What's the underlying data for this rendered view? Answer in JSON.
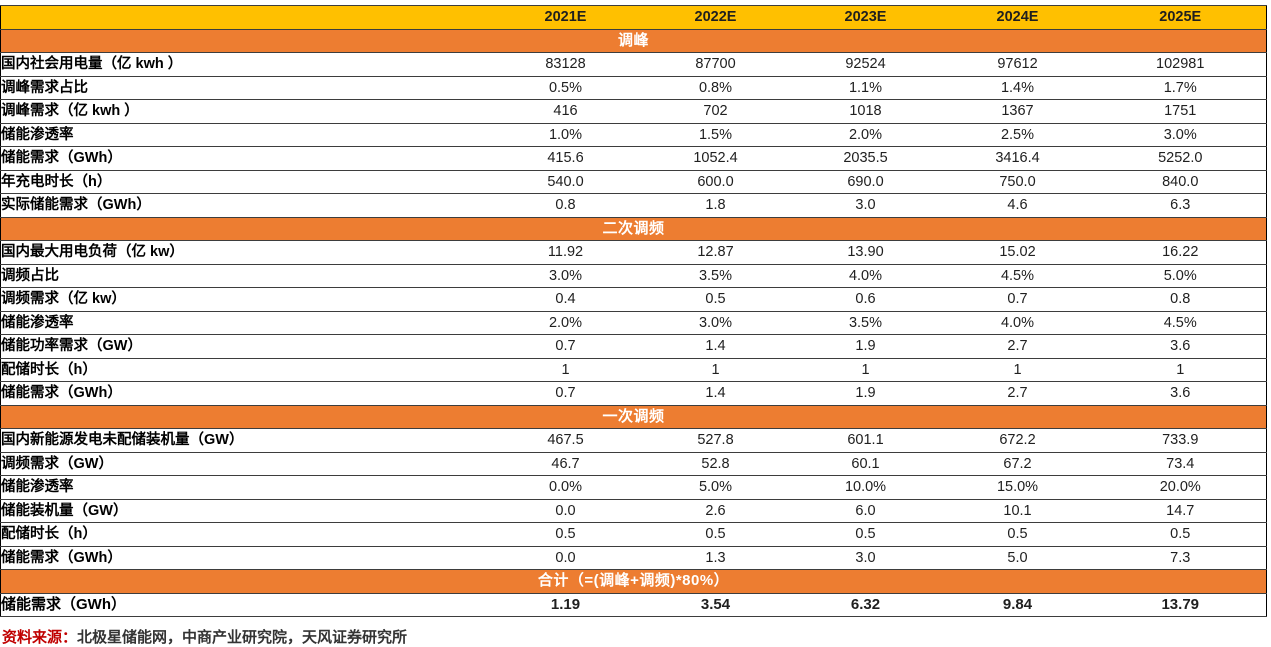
{
  "chart_data": {
    "type": "table",
    "columns": [
      "2021E",
      "2022E",
      "2023E",
      "2024E",
      "2025E"
    ],
    "sections": [
      {
        "title": "调峰",
        "rows": [
          {
            "label": "国内社会用电量（亿 kwh ）",
            "values": [
              "83128",
              "87700",
              "92524",
              "97612",
              "102981"
            ]
          },
          {
            "label": "调峰需求占比",
            "values": [
              "0.5%",
              "0.8%",
              "1.1%",
              "1.4%",
              "1.7%"
            ]
          },
          {
            "label": "调峰需求（亿 kwh ）",
            "values": [
              "416",
              "702",
              "1018",
              "1367",
              "1751"
            ]
          },
          {
            "label": "储能渗透率",
            "values": [
              "1.0%",
              "1.5%",
              "2.0%",
              "2.5%",
              "3.0%"
            ]
          },
          {
            "label": "储能需求（GWh）",
            "values": [
              "415.6",
              "1052.4",
              "2035.5",
              "3416.4",
              "5252.0"
            ]
          },
          {
            "label": "年充电时长（h）",
            "values": [
              "540.0",
              "600.0",
              "690.0",
              "750.0",
              "840.0"
            ]
          },
          {
            "label": "实际储能需求（GWh）",
            "values": [
              "0.8",
              "1.8",
              "3.0",
              "4.6",
              "6.3"
            ]
          }
        ]
      },
      {
        "title": "二次调频",
        "rows": [
          {
            "label": "国内最大用电负荷（亿 kw）",
            "values": [
              "11.92",
              "12.87",
              "13.90",
              "15.02",
              "16.22"
            ]
          },
          {
            "label": "调频占比",
            "values": [
              "3.0%",
              "3.5%",
              "4.0%",
              "4.5%",
              "5.0%"
            ]
          },
          {
            "label": "调频需求（亿 kw）",
            "values": [
              "0.4",
              "0.5",
              "0.6",
              "0.7",
              "0.8"
            ]
          },
          {
            "label": "储能渗透率",
            "values": [
              "2.0%",
              "3.0%",
              "3.5%",
              "4.0%",
              "4.5%"
            ]
          },
          {
            "label": "储能功率需求（GW）",
            "values": [
              "0.7",
              "1.4",
              "1.9",
              "2.7",
              "3.6"
            ]
          },
          {
            "label": "配储时长（h）",
            "values": [
              "1",
              "1",
              "1",
              "1",
              "1"
            ]
          },
          {
            "label": "储能需求（GWh）",
            "values": [
              "0.7",
              "1.4",
              "1.9",
              "2.7",
              "3.6"
            ]
          }
        ]
      },
      {
        "title": "一次调频",
        "rows": [
          {
            "label": "国内新能源发电未配储装机量（GW）",
            "values": [
              "467.5",
              "527.8",
              "601.1",
              "672.2",
              "733.9"
            ]
          },
          {
            "label": "调频需求（GW）",
            "values": [
              "46.7",
              "52.8",
              "60.1",
              "67.2",
              "73.4"
            ]
          },
          {
            "label": "储能渗透率",
            "values": [
              "0.0%",
              "5.0%",
              "10.0%",
              "15.0%",
              "20.0%"
            ]
          },
          {
            "label": "储能装机量（GW）",
            "values": [
              "0.0",
              "2.6",
              "6.0",
              "10.1",
              "14.7"
            ]
          },
          {
            "label": "配储时长（h）",
            "values": [
              "0.5",
              "0.5",
              "0.5",
              "0.5",
              "0.5"
            ]
          },
          {
            "label": "储能需求（GWh）",
            "values": [
              "0.0",
              "1.3",
              "3.0",
              "5.0",
              "7.3"
            ]
          }
        ]
      },
      {
        "title": "合计（=(调峰+调频)*80%）",
        "rows": [
          {
            "label": "储能需求（GWh）",
            "values": [
              "1.19",
              "3.54",
              "6.32",
              "9.84",
              "13.79"
            ],
            "bold": true
          }
        ]
      }
    ]
  },
  "footer": {
    "source_label": "资料来源：",
    "source_text": "北极星储能网，中商产业研究院，天风证券研究所"
  },
  "colors": {
    "year_header_bg": "#FFC000",
    "section_header_bg": "#ED7D31",
    "section_header_text": "#FFFFFF",
    "gridline": "#3D3D3D",
    "source_label_red": "#C00000"
  }
}
